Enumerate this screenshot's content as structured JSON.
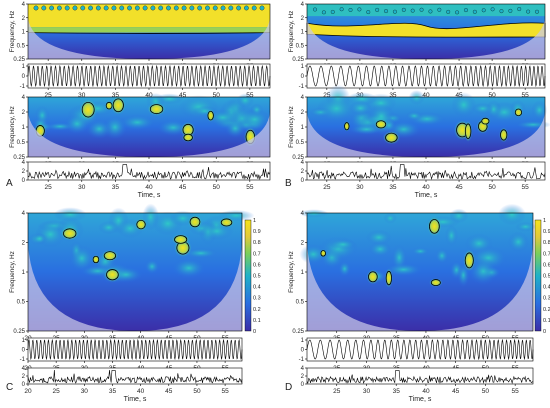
{
  "figure": {
    "panels": [
      {
        "label": "A",
        "colorbar": false,
        "spectrogram_top": "wide",
        "signal": "fast",
        "bottom_series": "noise1"
      },
      {
        "label": "B",
        "colorbar": false,
        "spectrogram_top": "ridge",
        "signal": "slow",
        "bottom_series": "noise2"
      },
      {
        "label": "C",
        "colorbar": true,
        "spectrogram_top": "blobs",
        "signal": "fast",
        "bottom_series": "noise1"
      },
      {
        "label": "D",
        "colorbar": true,
        "spectrogram_top": "blobs2",
        "signal": "slow",
        "bottom_series": "noise2"
      }
    ],
    "labels": {
      "freq_axis": "Frequency, Hz",
      "time_axis": "Time, s"
    },
    "colorbar_ticks": [
      "0",
      "0.1",
      "0.2",
      "0.3",
      "0.4",
      "0.5",
      "0.6",
      "0.7",
      "0.8",
      "0.9",
      "1"
    ],
    "colors": {
      "low": "#3b2ea8",
      "mid": "#1fb2c8",
      "high": "#f5e31a",
      "contour": "#000000",
      "signal": "#000000"
    }
  },
  "chart_data": [
    {
      "type": "heatmap",
      "panel": "A",
      "x_ticks": [
        "25",
        "30",
        "35",
        "40",
        "45",
        "50",
        "55"
      ],
      "y_ticks": [
        "0.25",
        "0.5",
        "1",
        "2",
        "4"
      ],
      "xlim": [
        22,
        58
      ],
      "ylim": [
        0.25,
        4.5
      ],
      "yscale": "log",
      "colorbar": [
        0,
        1
      ]
    },
    {
      "type": "line",
      "panel": "A-signal",
      "y_ticks": [
        "1",
        "0",
        "-1"
      ],
      "ylim": [
        -1,
        1
      ]
    },
    {
      "type": "line",
      "panel": "A-noise",
      "y_ticks": [
        "4",
        "2",
        "0"
      ],
      "ylim": [
        0,
        4
      ],
      "xlabel": "Time, s"
    },
    {
      "type": "heatmap",
      "panel": "B",
      "x_ticks": [
        "25",
        "30",
        "35",
        "40",
        "45",
        "50",
        "55"
      ],
      "y_ticks": [
        "0.25",
        "0.5",
        "1",
        "2",
        "4"
      ],
      "xlim": [
        22,
        58
      ],
      "ylim": [
        0.25,
        4.5
      ],
      "yscale": "log",
      "colorbar": [
        0,
        1
      ]
    },
    {
      "type": "line",
      "panel": "B-signal",
      "y_ticks": [
        "1",
        "0",
        "-1"
      ],
      "ylim": [
        -1,
        1
      ]
    },
    {
      "type": "line",
      "panel": "B-noise",
      "y_ticks": [
        "4",
        "2",
        "0"
      ],
      "ylim": [
        0,
        4
      ],
      "xlabel": "Time, s"
    },
    {
      "type": "heatmap",
      "panel": "C",
      "x_ticks": [
        "20",
        "25",
        "30",
        "35",
        "40",
        "45",
        "50",
        "55"
      ],
      "y_ticks": [
        "0.25",
        "0.5",
        "1",
        "2",
        "4"
      ],
      "xlim": [
        20,
        58
      ],
      "ylim": [
        0.25,
        4.5
      ],
      "yscale": "log",
      "colorbar": [
        0,
        1
      ]
    },
    {
      "type": "line",
      "panel": "C-signal",
      "y_ticks": [
        "1",
        "0",
        "-1"
      ],
      "ylim": [
        -1,
        1
      ]
    },
    {
      "type": "line",
      "panel": "C-noise",
      "y_ticks": [
        "4",
        "2",
        "0"
      ],
      "ylim": [
        0,
        4
      ],
      "xlabel": "Time, s"
    },
    {
      "type": "heatmap",
      "panel": "D",
      "x_ticks": [
        "25",
        "30",
        "35",
        "40",
        "45",
        "50",
        "55"
      ],
      "y_ticks": [
        "0.25",
        "0.5",
        "1",
        "2",
        "4"
      ],
      "xlim": [
        20,
        58
      ],
      "ylim": [
        0.25,
        4.5
      ],
      "yscale": "log",
      "colorbar": [
        0,
        1
      ]
    },
    {
      "type": "line",
      "panel": "D-signal",
      "y_ticks": [
        "1",
        "0",
        "-1"
      ],
      "ylim": [
        -1,
        1
      ]
    },
    {
      "type": "line",
      "panel": "D-noise",
      "y_ticks": [
        "4",
        "2",
        "0"
      ],
      "ylim": [
        0,
        4
      ],
      "xlabel": "Time, s"
    }
  ]
}
